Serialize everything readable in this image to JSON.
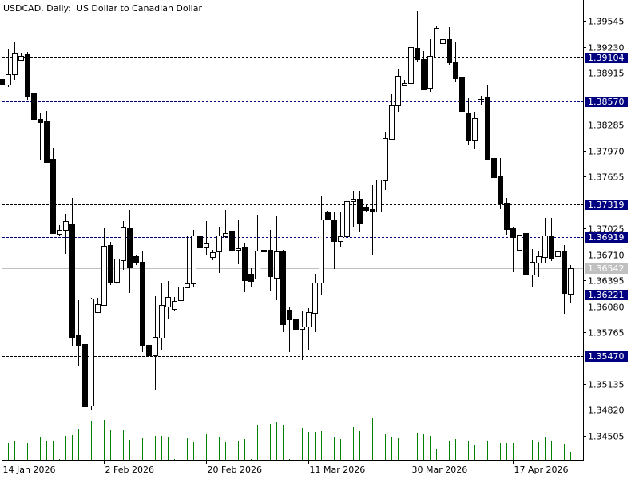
{
  "header": {
    "title": "USDCAD, Daily:  US Dollar to Canadian Dollar"
  },
  "colors": {
    "background": "#ffffff",
    "bull_body": "#ffffff",
    "bear_body": "#000000",
    "candle_outline": "#000000",
    "volume": "#008000",
    "level_line_black": "#000000",
    "level_line_blue": "#000080",
    "label_bg": "#000080",
    "label_text": "#ffffff",
    "bid_line": "#c0c0c0"
  },
  "chart_data": {
    "type": "candlestick",
    "symbol": "USDCAD",
    "timeframe": "Daily",
    "title": "USDCAD, Daily:  US Dollar to Canadian Dollar",
    "ylim": [
      1.34505,
      1.3966
    ],
    "y_ticks": [
      "1.39545",
      "1.39230",
      "1.38915",
      "1.38285",
      "1.37970",
      "1.37655",
      "1.37025",
      "1.36710",
      "1.36395",
      "1.36080",
      "1.35765",
      "1.35135",
      "1.34820",
      "1.34505"
    ],
    "x_ticks": [
      {
        "label": "14 Jan 2026",
        "index": 0
      },
      {
        "label": "2 Feb 2026",
        "index": 16
      },
      {
        "label": "20 Feb 2026",
        "index": 32
      },
      {
        "label": "11 Mar 2026",
        "index": 48
      },
      {
        "label": "30 Mar 2026",
        "index": 64
      },
      {
        "label": "17 Apr 2026",
        "index": 80
      }
    ],
    "levels": [
      {
        "price": "1.39104",
        "style": "dashed",
        "color": "#000000"
      },
      {
        "price": "1.38570",
        "style": "dashed",
        "color": "#000080"
      },
      {
        "price": "1.37319",
        "style": "dashed",
        "color": "#000000"
      },
      {
        "price": "1.36919",
        "style": "dashed",
        "color": "#000080"
      },
      {
        "price": "1.36221",
        "style": "dashed",
        "color": "#000000"
      },
      {
        "price": "1.35470",
        "style": "dashed",
        "color": "#000000"
      }
    ],
    "bid": {
      "price": "1.36542",
      "color": "#c0c0c0"
    },
    "ohlc_fields": [
      "open",
      "high",
      "low",
      "close"
    ],
    "candles": [
      [
        1.3884,
        1.3886,
        1.3876,
        1.3878
      ],
      [
        1.3877,
        1.392,
        1.3874,
        1.389
      ],
      [
        1.389,
        1.3929,
        1.3883,
        1.3915
      ],
      [
        1.3907,
        1.3915,
        1.3907,
        1.3912
      ],
      [
        1.3914,
        1.3917,
        1.3859,
        1.3864
      ],
      [
        1.3867,
        1.3879,
        1.3813,
        1.3835
      ],
      [
        1.3835,
        1.3843,
        1.3785,
        1.3832
      ],
      [
        1.3834,
        1.3845,
        1.3782,
        1.3783
      ],
      [
        1.3787,
        1.38,
        1.3696,
        1.3697
      ],
      [
        1.3696,
        1.3706,
        1.3693,
        1.3701
      ],
      [
        1.3701,
        1.372,
        1.3672,
        1.3711
      ],
      [
        1.3708,
        1.3739,
        1.356,
        1.3571
      ],
      [
        1.3574,
        1.3615,
        1.3536,
        1.3561
      ],
      [
        1.3562,
        1.3579,
        1.3485,
        1.3486
      ],
      [
        1.3487,
        1.3618,
        1.3482,
        1.3617
      ],
      [
        1.3601,
        1.3618,
        1.36,
        1.361
      ],
      [
        1.3609,
        1.3703,
        1.3609,
        1.3681
      ],
      [
        1.3682,
        1.3686,
        1.3634,
        1.3638
      ],
      [
        1.3638,
        1.3684,
        1.3629,
        1.3666
      ],
      [
        1.3664,
        1.3711,
        1.3652,
        1.3705
      ],
      [
        1.3704,
        1.3725,
        1.3624,
        1.3655
      ],
      [
        1.3669,
        1.3671,
        1.3658,
        1.3661
      ],
      [
        1.3662,
        1.3674,
        1.3552,
        1.3561
      ],
      [
        1.3561,
        1.3577,
        1.3525,
        1.3548
      ],
      [
        1.3548,
        1.362,
        1.3506,
        1.3571
      ],
      [
        1.357,
        1.3637,
        1.3555,
        1.3609
      ],
      [
        1.3608,
        1.3639,
        1.3593,
        1.3619
      ],
      [
        1.3605,
        1.3619,
        1.3602,
        1.3614
      ],
      [
        1.3615,
        1.364,
        1.3604,
        1.3632
      ],
      [
        1.3631,
        1.3694,
        1.363,
        1.3636
      ],
      [
        1.3636,
        1.3701,
        1.3632,
        1.3694
      ],
      [
        1.3693,
        1.3715,
        1.3668,
        1.3679
      ],
      [
        1.3679,
        1.3711,
        1.367,
        1.3684
      ],
      [
        1.3668,
        1.3676,
        1.3664,
        1.3673
      ],
      [
        1.3674,
        1.3705,
        1.3648,
        1.3694
      ],
      [
        1.3693,
        1.3725,
        1.3691,
        1.3697
      ],
      [
        1.37,
        1.3707,
        1.3673,
        1.3676
      ],
      [
        1.3676,
        1.3713,
        1.3659,
        1.3678
      ],
      [
        1.3679,
        1.3685,
        1.3625,
        1.364
      ],
      [
        1.3647,
        1.3654,
        1.3631,
        1.3639
      ],
      [
        1.3641,
        1.3719,
        1.3641,
        1.3675
      ],
      [
        1.3674,
        1.3753,
        1.3653,
        1.3676
      ],
      [
        1.3676,
        1.3701,
        1.3627,
        1.3644
      ],
      [
        1.3642,
        1.3717,
        1.3615,
        1.3674
      ],
      [
        1.3675,
        1.3676,
        1.3576,
        1.3586
      ],
      [
        1.3604,
        1.3608,
        1.3552,
        1.3592
      ],
      [
        1.3593,
        1.3608,
        1.3527,
        1.358
      ],
      [
        1.358,
        1.3603,
        1.3543,
        1.3583
      ],
      [
        1.3583,
        1.3606,
        1.3555,
        1.3601
      ],
      [
        1.36,
        1.3647,
        1.3576,
        1.3637
      ],
      [
        1.3637,
        1.3742,
        1.3621,
        1.3713
      ],
      [
        1.3722,
        1.3724,
        1.3712,
        1.3713
      ],
      [
        1.3713,
        1.3723,
        1.3653,
        1.3687
      ],
      [
        1.3687,
        1.3723,
        1.368,
        1.3693
      ],
      [
        1.3693,
        1.3738,
        1.3687,
        1.3736
      ],
      [
        1.3736,
        1.3748,
        1.3705,
        1.3738
      ],
      [
        1.3738,
        1.3748,
        1.3699,
        1.3709
      ],
      [
        1.3729,
        1.3733,
        1.3723,
        1.3725
      ],
      [
        1.3726,
        1.3755,
        1.367,
        1.3723
      ],
      [
        1.3723,
        1.3786,
        1.3722,
        1.3762
      ],
      [
        1.3761,
        1.382,
        1.3749,
        1.3812
      ],
      [
        1.3811,
        1.3866,
        1.3811,
        1.3852
      ],
      [
        1.3852,
        1.3896,
        1.3844,
        1.3888
      ],
      [
        1.3876,
        1.3883,
        1.3876,
        1.3879
      ],
      [
        1.3879,
        1.3945,
        1.3879,
        1.3923
      ],
      [
        1.3922,
        1.3966,
        1.3904,
        1.3908
      ],
      [
        1.3908,
        1.3918,
        1.3871,
        1.3871
      ],
      [
        1.3873,
        1.3932,
        1.3868,
        1.3912
      ],
      [
        1.3911,
        1.3949,
        1.3911,
        1.3946
      ],
      [
        1.3928,
        1.3933,
        1.3927,
        1.3932
      ],
      [
        1.3932,
        1.3947,
        1.3901,
        1.3904
      ],
      [
        1.3904,
        1.393,
        1.388,
        1.3885
      ],
      [
        1.3886,
        1.3901,
        1.3823,
        1.3845
      ],
      [
        1.3843,
        1.3861,
        1.3803,
        1.381
      ],
      [
        1.381,
        1.3844,
        1.3799,
        1.3836
      ],
      [
        1.386,
        1.3864,
        1.3852,
        1.386
      ],
      [
        1.3862,
        1.3877,
        1.3785,
        1.3787
      ],
      [
        1.3788,
        1.379,
        1.3731,
        1.3765
      ],
      [
        1.3766,
        1.3788,
        1.3726,
        1.3734
      ],
      [
        1.3734,
        1.3739,
        1.3695,
        1.3702
      ],
      [
        1.3704,
        1.3705,
        1.3649,
        1.3692
      ],
      [
        1.3676,
        1.3695,
        1.3676,
        1.3695
      ],
      [
        1.3697,
        1.371,
        1.3635,
        1.3646
      ],
      [
        1.3646,
        1.3677,
        1.3631,
        1.3662
      ],
      [
        1.3661,
        1.3675,
        1.3643,
        1.3669
      ],
      [
        1.3668,
        1.3715,
        1.366,
        1.3694
      ],
      [
        1.3693,
        1.3715,
        1.3663,
        1.3667
      ],
      [
        1.3669,
        1.3678,
        1.3665,
        1.3674
      ],
      [
        1.3675,
        1.3682,
        1.3599,
        1.3624
      ],
      [
        1.3623,
        1.3658,
        1.3612,
        1.3654
      ]
    ],
    "volumes": [
      0,
      21,
      24,
      0,
      21,
      29,
      28,
      24,
      23,
      1,
      30,
      31,
      39,
      44,
      49,
      0,
      50,
      37,
      33,
      38,
      25,
      0,
      27,
      23,
      30,
      30,
      29,
      1,
      14,
      27,
      22,
      24,
      32,
      0,
      29,
      22,
      22,
      24,
      26,
      1,
      44,
      54,
      45,
      47,
      44,
      1,
      57,
      40,
      35,
      35,
      36,
      0,
      29,
      26,
      31,
      41,
      36,
      0,
      53,
      46,
      32,
      28,
      27,
      0,
      28,
      34,
      32,
      30,
      13,
      0,
      23,
      26,
      40,
      23,
      18,
      0,
      23,
      19,
      21,
      21,
      21,
      0,
      23,
      25,
      22,
      28,
      23,
      0,
      20,
      10
    ]
  }
}
